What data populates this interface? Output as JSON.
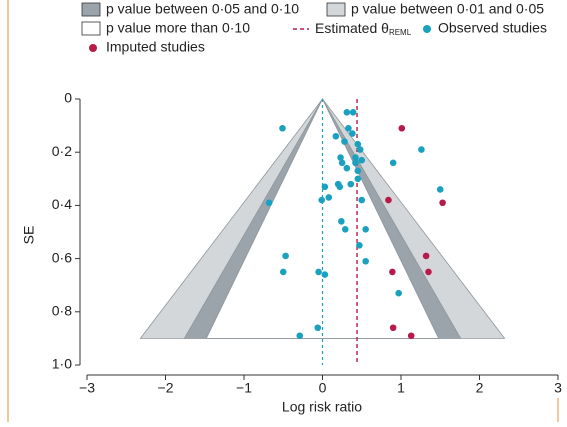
{
  "chart_data": {
    "type": "funnel",
    "xlabel": "Log risk ratio",
    "ylabel": "SE",
    "xlim": [
      -3,
      3
    ],
    "ylim": [
      0,
      1
    ],
    "xticks": [
      {
        "value": -3,
        "label": "−3"
      },
      {
        "value": -2,
        "label": "−2"
      },
      {
        "value": -1,
        "label": "−1"
      },
      0,
      1,
      2,
      3
    ],
    "yticks": [
      0,
      {
        "value": 0.2,
        "label": "0·2"
      },
      {
        "value": 0.4,
        "label": "0·4"
      },
      {
        "value": 0.6,
        "label": "0·6"
      },
      {
        "value": 0.8,
        "label": "0·8"
      },
      {
        "value": 1,
        "label": "1·0"
      }
    ],
    "y_inverted": true,
    "funnel_base_se": 0.9,
    "null_value": 0,
    "regions": [
      {
        "name": "p value between 0·05 and 0·10",
        "color": "#9ba4ab",
        "base_half_width": 1.76
      },
      {
        "name": "p value between 0·01 and 0·05",
        "color": "#d3d7da",
        "base_half_width": 2.32
      },
      {
        "name": "p value more than 0·10",
        "color": "#ffffff",
        "base_half_width": 1.48
      }
    ],
    "estimate": {
      "name": "Estimated θ",
      "name_sub": "REML",
      "color": "#b81a4a",
      "value": 0.44
    },
    "series": [
      {
        "name": "Observed studies",
        "color": "#1aa1c0",
        "x": [
          0.31,
          0.39,
          -0.51,
          0.33,
          0.17,
          0.38,
          0.45,
          0.28,
          0.48,
          1.26,
          0.23,
          0.42,
          0.25,
          0.42,
          0.5,
          0.9,
          0.31,
          0.45,
          0.45,
          0.2,
          0.36,
          0.22,
          0.03,
          1.5,
          0.08,
          -0.01,
          0.5,
          -0.68,
          0.24,
          0.29,
          0.55,
          0.47,
          -0.47,
          0.55,
          -0.5,
          -0.05,
          0.03,
          0.97,
          -0.06,
          -0.29
        ],
        "values": [
          0.05,
          0.05,
          0.11,
          0.11,
          0.14,
          0.13,
          0.17,
          0.16,
          0.19,
          0.19,
          0.22,
          0.22,
          0.24,
          0.24,
          0.23,
          0.24,
          0.26,
          0.27,
          0.3,
          0.32,
          0.32,
          0.33,
          0.33,
          0.34,
          0.37,
          0.38,
          0.38,
          0.39,
          0.46,
          0.49,
          0.49,
          0.55,
          0.59,
          0.61,
          0.65,
          0.65,
          0.66,
          0.73,
          0.86,
          0.89
        ]
      },
      {
        "name": "Imputed studies",
        "color": "#b81a4a",
        "x": [
          1.01,
          0.84,
          1.53,
          1.32,
          0.89,
          1.35,
          0.9,
          1.13
        ],
        "values": [
          0.11,
          0.38,
          0.39,
          0.59,
          0.65,
          0.65,
          0.86,
          0.89
        ]
      }
    ]
  }
}
